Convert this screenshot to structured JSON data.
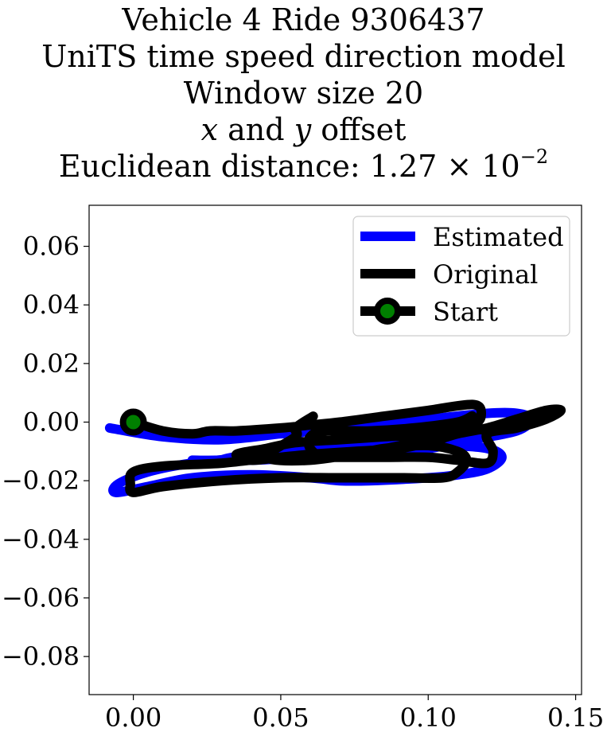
{
  "title": {
    "line1": "Vehicle 4 Ride 9306437",
    "line2": "UniTS time speed direction model",
    "line3": "Window size 20",
    "line4_x": "x",
    "line4_and": " and ",
    "line4_y": "y",
    "line4_rest": " offset",
    "line5_prefix": "Euclidean distance: 1.27 × 10",
    "line5_exp": "−2"
  },
  "chart_data": {
    "type": "line",
    "xlim": [
      -0.015,
      0.152
    ],
    "ylim": [
      -0.093,
      0.074
    ],
    "xticks": [
      0.0,
      0.05,
      0.1,
      0.15
    ],
    "xtick_labels": [
      "0.00",
      "0.05",
      "0.10",
      "0.15"
    ],
    "yticks": [
      0.06,
      0.04,
      0.02,
      0.0,
      -0.02,
      -0.04,
      -0.06,
      -0.08
    ],
    "ytick_labels": [
      "0.06",
      "0.04",
      "0.02",
      "0.00",
      "−0.02",
      "−0.04",
      "−0.06",
      "−0.08"
    ],
    "legend": {
      "position": "top-right",
      "entries": [
        "Estimated",
        "Original",
        "Start"
      ]
    },
    "series": [
      {
        "name": "Estimated",
        "color": "#0000ff",
        "points": [
          [
            -0.008,
            -0.002
          ],
          [
            0.01,
            -0.005
          ],
          [
            0.03,
            -0.006
          ],
          [
            0.05,
            -0.004
          ],
          [
            0.055,
            -0.004
          ],
          [
            0.06,
            -0.003
          ],
          [
            0.08,
            -0.001
          ],
          [
            0.1,
            0.001
          ],
          [
            0.12,
            0.003
          ],
          [
            0.13,
            0.003
          ],
          [
            0.135,
            0.001
          ],
          [
            0.13,
            -0.003
          ],
          [
            0.115,
            -0.006
          ],
          [
            0.1,
            -0.009
          ],
          [
            0.08,
            -0.011
          ],
          [
            0.06,
            -0.012
          ],
          [
            0.04,
            -0.013
          ],
          [
            0.03,
            -0.013
          ],
          [
            0.04,
            -0.011
          ],
          [
            0.06,
            -0.009
          ],
          [
            0.08,
            -0.007
          ],
          [
            0.1,
            -0.006
          ],
          [
            0.11,
            -0.006
          ],
          [
            0.1,
            -0.007
          ],
          [
            0.08,
            -0.009
          ],
          [
            0.06,
            -0.011
          ],
          [
            0.04,
            -0.012
          ],
          [
            0.02,
            -0.014
          ],
          [
            0.005,
            -0.017
          ],
          [
            -0.005,
            -0.021
          ],
          [
            -0.006,
            -0.024
          ],
          [
            0.005,
            -0.022
          ],
          [
            0.02,
            -0.019
          ],
          [
            0.04,
            -0.018
          ],
          [
            0.06,
            -0.019
          ],
          [
            0.07,
            -0.02
          ],
          [
            0.08,
            -0.02
          ],
          [
            0.1,
            -0.019
          ],
          [
            0.11,
            -0.018
          ],
          [
            0.12,
            -0.016
          ],
          [
            0.125,
            -0.012
          ],
          [
            0.12,
            -0.009
          ],
          [
            0.105,
            -0.008
          ],
          [
            0.09,
            -0.009
          ],
          [
            0.07,
            -0.011
          ],
          [
            0.05,
            -0.012
          ],
          [
            0.03,
            -0.013
          ],
          [
            0.02,
            -0.013
          ]
        ]
      },
      {
        "name": "Original",
        "color": "#000000",
        "points": [
          [
            0.0,
            0.0
          ],
          [
            0.01,
            -0.003
          ],
          [
            0.02,
            -0.004
          ],
          [
            0.026,
            -0.003
          ],
          [
            0.035,
            -0.003
          ],
          [
            0.05,
            -0.002
          ],
          [
            0.06,
            -0.001
          ],
          [
            0.07,
            0.0
          ],
          [
            0.085,
            0.002
          ],
          [
            0.1,
            0.004
          ],
          [
            0.115,
            0.006
          ],
          [
            0.118,
            0.003
          ],
          [
            0.115,
            -0.001
          ],
          [
            0.1,
            -0.004
          ],
          [
            0.085,
            -0.005
          ],
          [
            0.07,
            -0.006
          ],
          [
            0.055,
            -0.007
          ],
          [
            0.045,
            -0.009
          ],
          [
            0.035,
            -0.011
          ],
          [
            0.04,
            -0.013
          ],
          [
            0.05,
            -0.012
          ],
          [
            0.06,
            -0.011
          ],
          [
            0.075,
            -0.01
          ],
          [
            0.09,
            -0.009
          ],
          [
            0.1,
            -0.007
          ],
          [
            0.11,
            -0.004
          ],
          [
            0.12,
            -0.002
          ],
          [
            0.13,
            0.001
          ],
          [
            0.14,
            0.004
          ],
          [
            0.145,
            0.004
          ],
          [
            0.14,
            0.001
          ],
          [
            0.13,
            -0.002
          ],
          [
            0.12,
            -0.004
          ],
          [
            0.122,
            -0.01
          ],
          [
            0.12,
            -0.014
          ],
          [
            0.11,
            -0.013
          ],
          [
            0.1,
            -0.012
          ],
          [
            0.085,
            -0.012
          ],
          [
            0.07,
            -0.012
          ],
          [
            0.05,
            -0.012
          ],
          [
            0.03,
            -0.014
          ],
          [
            0.01,
            -0.015
          ],
          [
            0.0,
            -0.017
          ],
          [
            -0.001,
            -0.021
          ],
          [
            0.0,
            -0.024
          ],
          [
            0.01,
            -0.022
          ],
          [
            0.03,
            -0.02
          ],
          [
            0.05,
            -0.019
          ],
          [
            0.07,
            -0.019
          ],
          [
            0.09,
            -0.019
          ],
          [
            0.105,
            -0.019
          ],
          [
            0.11,
            -0.017
          ],
          [
            0.113,
            -0.013
          ],
          [
            0.11,
            -0.01
          ],
          [
            0.1,
            -0.008
          ],
          [
            0.085,
            -0.009
          ],
          [
            0.075,
            -0.011
          ],
          [
            0.065,
            -0.012
          ],
          [
            0.06,
            -0.009
          ],
          [
            0.06,
            -0.005
          ],
          [
            0.065,
            -0.003
          ],
          [
            0.08,
            -0.003
          ],
          [
            0.095,
            -0.002
          ],
          [
            0.11,
            0.0
          ],
          [
            0.115,
            0.002
          ],
          [
            0.11,
            -0.003
          ],
          [
            0.095,
            -0.007
          ],
          [
            0.08,
            -0.01
          ],
          [
            0.06,
            -0.013
          ],
          [
            0.045,
            -0.012
          ],
          [
            0.055,
            -0.005
          ],
          [
            0.055,
            -0.002
          ],
          [
            0.061,
            0.002
          ]
        ]
      }
    ],
    "start_point": [
      0.0,
      0.0
    ],
    "start_marker_color": "#008000"
  }
}
